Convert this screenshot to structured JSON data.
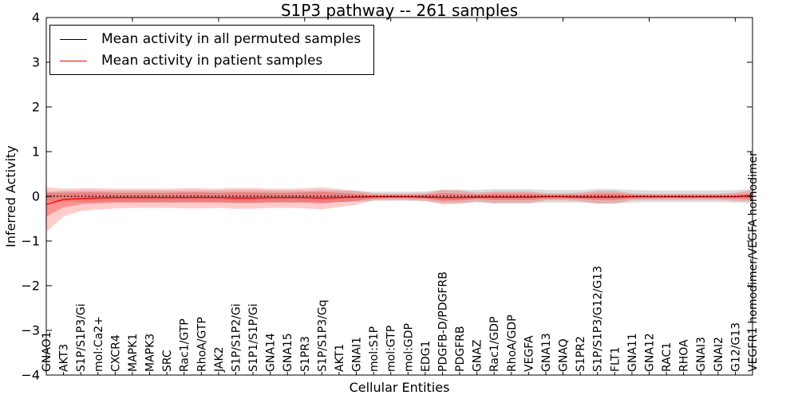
{
  "figure": {
    "title": "S1P3 pathway -- 261 samples",
    "xlabel": "Cellular Entities",
    "ylabel": "Inferred Activity"
  },
  "legend": {
    "items": [
      {
        "label": "Mean activity in all permuted samples",
        "color": "#000000"
      },
      {
        "label": "Mean activity in patient samples",
        "color": "#ff0000"
      }
    ]
  },
  "chart_data": {
    "type": "line",
    "title": "S1P3 pathway -- 261 samples",
    "xlabel": "Cellular Entities",
    "ylabel": "Inferred Activity",
    "ylim": [
      -4,
      4
    ],
    "yticks": [
      -4,
      -3,
      -2,
      -1,
      0,
      1,
      2,
      3,
      4
    ],
    "grid": false,
    "legend_position": "upper left",
    "categories": [
      "GNAO1",
      "AKT3",
      "S1P/S1P3/Gi",
      "mol:Ca2+",
      "CXCR4",
      "MAPK1",
      "MAPK3",
      "SRC",
      "Rac1/GTP",
      "RhoA/GTP",
      "JAK2",
      "S1P/S1P2/Gi",
      "S1P1/S1P/Gi",
      "GNA14",
      "GNA15",
      "S1PR3",
      "S1P/S1P3/Gq",
      "AKT1",
      "GNAI1",
      "mol:S1P",
      "mol:GTP",
      "mol:GDP",
      "EDG1",
      "PDGFB-D/PDGFRB",
      "PDGFRB",
      "GNAZ",
      "Rac1/GDP",
      "RhoA/GDP",
      "VEGFA",
      "GNA13",
      "GNAQ",
      "S1PR2",
      "S1P/S1P3/G12/G13",
      "FLT1",
      "GNA11",
      "GNA12",
      "RAC1",
      "RHOA",
      "GNAI3",
      "GNAI2",
      "G12/G13",
      "VEGFR1 homodimer/VEGFA homodimer"
    ],
    "series": [
      {
        "name": "Mean activity in all permuted samples",
        "color": "#000000",
        "style": "dotted",
        "values": [
          0,
          0,
          0,
          0,
          0,
          0,
          0,
          0,
          0,
          0,
          0,
          0,
          0,
          0,
          0,
          0,
          0,
          0,
          0,
          0,
          0,
          0,
          0,
          0,
          0,
          0,
          0,
          0,
          0,
          0,
          0,
          0,
          0,
          0,
          0,
          0,
          0,
          0,
          0,
          0,
          0,
          0
        ]
      },
      {
        "name": "Mean activity in patient samples",
        "color": "#ff0000",
        "style": "solid",
        "values": [
          -0.18,
          -0.07,
          -0.05,
          -0.04,
          -0.03,
          -0.03,
          -0.03,
          -0.03,
          -0.03,
          -0.03,
          -0.03,
          -0.04,
          -0.04,
          -0.03,
          -0.03,
          -0.03,
          -0.04,
          -0.03,
          -0.02,
          -0.01,
          -0.01,
          -0.01,
          -0.02,
          -0.03,
          -0.03,
          -0.02,
          -0.02,
          -0.02,
          -0.02,
          -0.01,
          -0.01,
          -0.02,
          -0.02,
          -0.02,
          -0.01,
          -0.01,
          -0.01,
          -0.01,
          -0.01,
          -0.01,
          -0.01,
          0.02
        ]
      }
    ],
    "bands": [
      {
        "name": "permuted-range",
        "color": "#aaaaaa",
        "opacity": 0.4,
        "upper": [
          0.1,
          0.12,
          0.13,
          0.13,
          0.13,
          0.13,
          0.13,
          0.13,
          0.13,
          0.13,
          0.13,
          0.14,
          0.14,
          0.13,
          0.13,
          0.13,
          0.14,
          0.13,
          0.12,
          0.1,
          0.1,
          0.1,
          0.11,
          0.15,
          0.15,
          0.14,
          0.16,
          0.16,
          0.16,
          0.14,
          0.14,
          0.14,
          0.16,
          0.16,
          0.14,
          0.13,
          0.13,
          0.13,
          0.13,
          0.13,
          0.14,
          0.16
        ],
        "lower": [
          -0.1,
          -0.12,
          -0.13,
          -0.13,
          -0.13,
          -0.13,
          -0.13,
          -0.13,
          -0.13,
          -0.13,
          -0.13,
          -0.14,
          -0.14,
          -0.13,
          -0.13,
          -0.13,
          -0.14,
          -0.13,
          -0.12,
          -0.1,
          -0.1,
          -0.1,
          -0.11,
          -0.15,
          -0.15,
          -0.14,
          -0.16,
          -0.16,
          -0.16,
          -0.14,
          -0.14,
          -0.14,
          -0.16,
          -0.16,
          -0.14,
          -0.13,
          -0.13,
          -0.13,
          -0.13,
          -0.13,
          -0.14,
          -0.16
        ]
      },
      {
        "name": "patient-range-outer",
        "color": "#ff0000",
        "opacity": 0.2,
        "upper": [
          0.2,
          0.17,
          0.18,
          0.18,
          0.17,
          0.17,
          0.17,
          0.17,
          0.18,
          0.18,
          0.17,
          0.19,
          0.19,
          0.17,
          0.17,
          0.18,
          0.2,
          0.16,
          0.13,
          0.07,
          0.06,
          0.06,
          0.07,
          0.14,
          0.13,
          0.08,
          0.11,
          0.11,
          0.11,
          0.07,
          0.07,
          0.08,
          0.12,
          0.12,
          0.07,
          0.06,
          0.06,
          0.06,
          0.06,
          0.06,
          0.08,
          0.14
        ],
        "lower": [
          -0.8,
          -0.45,
          -0.33,
          -0.3,
          -0.27,
          -0.26,
          -0.26,
          -0.26,
          -0.27,
          -0.27,
          -0.26,
          -0.28,
          -0.28,
          -0.26,
          -0.26,
          -0.27,
          -0.29,
          -0.24,
          -0.19,
          -0.09,
          -0.08,
          -0.08,
          -0.1,
          -0.18,
          -0.17,
          -0.11,
          -0.15,
          -0.15,
          -0.15,
          -0.09,
          -0.09,
          -0.11,
          -0.16,
          -0.16,
          -0.09,
          -0.08,
          -0.08,
          -0.08,
          -0.08,
          -0.08,
          -0.1,
          -0.12
        ]
      },
      {
        "name": "patient-range-inner",
        "color": "#ff0000",
        "opacity": 0.28,
        "upper": [
          0.08,
          0.08,
          0.09,
          0.09,
          0.08,
          0.08,
          0.08,
          0.08,
          0.09,
          0.09,
          0.08,
          0.09,
          0.09,
          0.08,
          0.08,
          0.09,
          0.1,
          0.08,
          0.06,
          0.03,
          0.03,
          0.03,
          0.04,
          0.07,
          0.06,
          0.04,
          0.06,
          0.06,
          0.06,
          0.04,
          0.04,
          0.04,
          0.06,
          0.06,
          0.04,
          0.03,
          0.03,
          0.03,
          0.03,
          0.03,
          0.04,
          0.07
        ],
        "lower": [
          -0.45,
          -0.25,
          -0.18,
          -0.16,
          -0.14,
          -0.14,
          -0.14,
          -0.14,
          -0.14,
          -0.14,
          -0.14,
          -0.15,
          -0.15,
          -0.14,
          -0.14,
          -0.14,
          -0.16,
          -0.13,
          -0.1,
          -0.05,
          -0.04,
          -0.04,
          -0.05,
          -0.1,
          -0.09,
          -0.06,
          -0.08,
          -0.08,
          -0.08,
          -0.05,
          -0.05,
          -0.06,
          -0.08,
          -0.08,
          -0.05,
          -0.04,
          -0.04,
          -0.04,
          -0.04,
          -0.04,
          -0.05,
          -0.07
        ]
      }
    ]
  }
}
